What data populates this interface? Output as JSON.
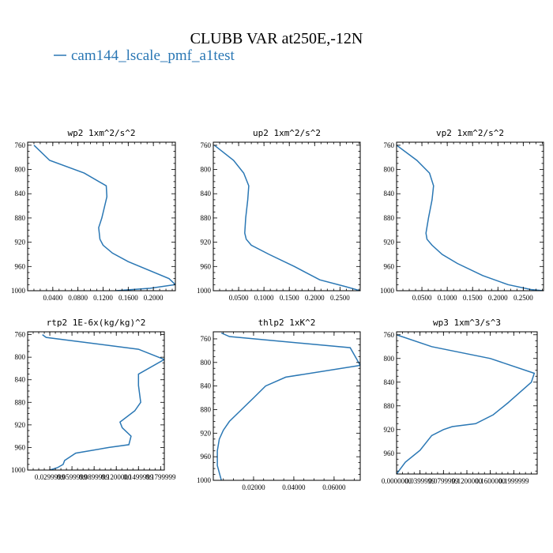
{
  "figure": {
    "title": "CLUBB VAR at250E,-12N",
    "legend_label": "cam144_lscale_pmf_a1test",
    "series_color": "#2a77b4"
  },
  "chart_data": [
    {
      "type": "line",
      "title": "wp2   1xm^2/s^2",
      "series": [
        {
          "name": "cam144_lscale_pmf_a1test",
          "x": [
            0.01,
            0.035,
            0.09,
            0.125,
            0.126,
            0.118,
            0.113,
            0.115,
            0.12,
            0.135,
            0.16,
            0.225,
            0.235,
            0.195,
            0.14
          ],
          "y": [
            760,
            785,
            806,
            827,
            845,
            880,
            896,
            915,
            925,
            938,
            952,
            980,
            990,
            996,
            1000
          ]
        }
      ],
      "xlim": [
        0.0,
        0.235
      ],
      "ylim": [
        1000,
        755
      ],
      "xticks": [
        0.04,
        0.08,
        0.12,
        0.16,
        0.2
      ],
      "xtick_labels": [
        "0.0400",
        "0.0800",
        "0.1200",
        "0.1600",
        "0.2000"
      ],
      "yticks": [
        760,
        800,
        840,
        880,
        920,
        960,
        1000
      ],
      "ytick_labels": [
        "760",
        "800",
        "840",
        "880",
        "920",
        "960",
        "1000"
      ]
    },
    {
      "type": "line",
      "title": "up2   1xm^2/s^2",
      "series": [
        {
          "name": "cam144_lscale_pmf_a1test",
          "x": [
            0.002,
            0.04,
            0.06,
            0.07,
            0.068,
            0.064,
            0.062,
            0.065,
            0.075,
            0.11,
            0.16,
            0.21,
            0.26,
            0.29
          ],
          "y": [
            760,
            785,
            806,
            827,
            850,
            880,
            905,
            915,
            925,
            940,
            960,
            982,
            993,
            1000
          ]
        }
      ],
      "xlim": [
        0.0,
        0.29
      ],
      "ylim": [
        1000,
        755
      ],
      "xticks": [
        0.05,
        0.1,
        0.15,
        0.2,
        0.25
      ],
      "xtick_labels": [
        "0.0500",
        "0.1000",
        "0.1500",
        "0.2000",
        "0.2500"
      ],
      "yticks": [
        760,
        800,
        840,
        880,
        920,
        960,
        1000
      ],
      "ytick_labels": [
        "760",
        "800",
        "840",
        "880",
        "920",
        "960",
        "1000"
      ]
    },
    {
      "type": "line",
      "title": "vp2   1xm^2/s^2",
      "series": [
        {
          "name": "cam144_lscale_pmf_a1test",
          "x": [
            0.0,
            0.04,
            0.065,
            0.073,
            0.07,
            0.063,
            0.058,
            0.06,
            0.07,
            0.09,
            0.12,
            0.17,
            0.22,
            0.265,
            0.29
          ],
          "y": [
            760,
            785,
            806,
            827,
            850,
            880,
            905,
            915,
            925,
            940,
            955,
            975,
            990,
            998,
            1000
          ]
        }
      ],
      "xlim": [
        0.0,
        0.29
      ],
      "ylim": [
        1000,
        755
      ],
      "xticks": [
        0.05,
        0.1,
        0.15,
        0.2,
        0.25
      ],
      "xtick_labels": [
        "0.0500",
        "0.1000",
        "0.1500",
        "0.2000",
        "0.2500"
      ],
      "yticks": [
        760,
        800,
        840,
        880,
        920,
        960,
        1000
      ],
      "ytick_labels": [
        "760",
        "800",
        "840",
        "880",
        "920",
        "960",
        "1000"
      ]
    },
    {
      "type": "line",
      "title": "rtp2   1E-6x(kg/kg)^2",
      "series": [
        {
          "name": "cam144_lscale_pmf_a1test",
          "x": [
            0.02,
            0.025,
            0.15,
            0.185,
            0.15,
            0.15,
            0.153,
            0.145,
            0.125,
            0.128,
            0.14,
            0.137,
            0.11,
            0.065,
            0.05,
            0.048,
            0.04,
            0.03
          ],
          "y": [
            760,
            765,
            786,
            804,
            830,
            850,
            880,
            895,
            915,
            925,
            940,
            955,
            960,
            970,
            983,
            990,
            996,
            1000
          ]
        }
      ],
      "xlim": [
        0.0,
        0.185
      ],
      "ylim": [
        1000,
        755
      ],
      "xticks": [
        0.03,
        0.06,
        0.09,
        0.12,
        0.15,
        0.18
      ],
      "xtick_labels": [
        "0.0299999",
        "0.0599999",
        "0.0899999",
        "0.1200000",
        "0.1499999",
        "0.1799999"
      ],
      "yticks": [
        760,
        800,
        840,
        880,
        920,
        960,
        1000
      ],
      "ytick_labels": [
        "760",
        "800",
        "840",
        "880",
        "920",
        "960",
        "1000"
      ]
    },
    {
      "type": "line",
      "title": "thlp2   1xK^2",
      "series": [
        {
          "name": "cam144_lscale_pmf_a1test",
          "x": [
            0.004,
            0.008,
            0.068,
            0.073,
            0.036,
            0.026,
            0.02,
            0.014,
            0.008,
            0.005,
            0.003,
            0.002,
            0.002,
            0.004
          ],
          "y": [
            750,
            756,
            775,
            805,
            825,
            840,
            860,
            880,
            900,
            915,
            930,
            950,
            975,
            1000
          ]
        }
      ],
      "xlim": [
        0.0,
        0.073
      ],
      "ylim": [
        1000,
        748
      ],
      "xticks": [
        0.02,
        0.04,
        0.06
      ],
      "xtick_labels": [
        "0.02000",
        "0.04000",
        "0.06000"
      ],
      "yticks": [
        760,
        800,
        840,
        880,
        920,
        960,
        1000
      ],
      "ytick_labels": [
        "760",
        "800",
        "840",
        "880",
        "920",
        "960",
        "1000"
      ]
    },
    {
      "type": "line",
      "title": "wp3   1xm^3/s^3",
      "series": [
        {
          "name": "cam144_lscale_pmf_a1test",
          "x": [
            0.0,
            0.06,
            0.16,
            0.235,
            0.23,
            0.19,
            0.165,
            0.135,
            0.095,
            0.08,
            0.06,
            0.04,
            0.015,
            0.0
          ],
          "y": [
            760,
            780,
            800,
            825,
            840,
            875,
            895,
            910,
            915,
            920,
            930,
            955,
            975,
            995
          ]
        }
      ],
      "xlim": [
        0.0,
        0.24
      ],
      "ylim": [
        995,
        755
      ],
      "xticks": [
        0.0,
        0.04,
        0.08,
        0.12,
        0.16,
        0.2
      ],
      "xtick_labels": [
        "0.0000000",
        "0.0399999",
        "0.0799999",
        "0.1200000",
        "0.1600000",
        "0.1999999"
      ],
      "yticks": [
        760,
        800,
        840,
        880,
        920,
        960,
        1000
      ],
      "ytick_labels": [
        "760",
        "800",
        "840",
        "880",
        "920",
        "960",
        "1000"
      ]
    }
  ]
}
